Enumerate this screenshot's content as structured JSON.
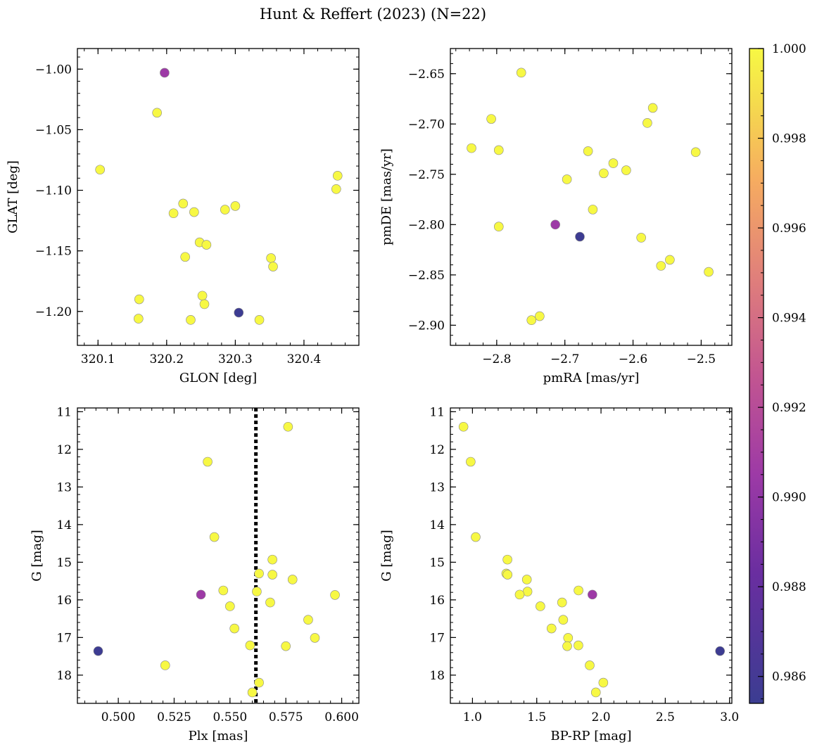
{
  "title": "Hunt & Reffert (2023) (N=22)",
  "colorbar": {
    "range": [
      0.9854,
      1.0
    ],
    "ticks": [
      0.986,
      0.988,
      0.99,
      0.992,
      0.994,
      0.996,
      0.998,
      1.0
    ],
    "tick_labels": [
      "0.986",
      "0.988",
      "0.990",
      "0.992",
      "0.994",
      "0.996",
      "0.998",
      "1.000"
    ],
    "colormap": "plasma"
  },
  "chart_data": [
    {
      "type": "scatter",
      "xlabel": "GLON [deg]",
      "ylabel": "GLAT [deg]",
      "xlim": [
        320.07,
        320.48
      ],
      "ylim": [
        -1.228,
        -0.983
      ],
      "xticks": [
        320.1,
        320.2,
        320.3,
        320.4
      ],
      "xtick_labels": [
        "320.1",
        "320.2",
        "320.3",
        "320.4"
      ],
      "yticks": [
        -1.0,
        -1.05,
        -1.1,
        -1.15,
        -1.2
      ],
      "ytick_labels": [
        "−1.00",
        "−1.05",
        "−1.10",
        "−1.15",
        "−1.20"
      ],
      "points": [
        {
          "x": 320.197,
          "y": -1.003,
          "c": 0.9905
        },
        {
          "x": 320.186,
          "y": -1.036,
          "c": 1.0
        },
        {
          "x": 320.103,
          "y": -1.083,
          "c": 1.0
        },
        {
          "x": 320.449,
          "y": -1.088,
          "c": 1.0
        },
        {
          "x": 320.447,
          "y": -1.099,
          "c": 1.0
        },
        {
          "x": 320.224,
          "y": -1.111,
          "c": 1.0
        },
        {
          "x": 320.3,
          "y": -1.113,
          "c": 1.0
        },
        {
          "x": 320.285,
          "y": -1.116,
          "c": 1.0
        },
        {
          "x": 320.21,
          "y": -1.119,
          "c": 1.0
        },
        {
          "x": 320.24,
          "y": -1.118,
          "c": 1.0
        },
        {
          "x": 320.248,
          "y": -1.143,
          "c": 1.0
        },
        {
          "x": 320.258,
          "y": -1.145,
          "c": 1.0
        },
        {
          "x": 320.227,
          "y": -1.155,
          "c": 1.0
        },
        {
          "x": 320.352,
          "y": -1.156,
          "c": 1.0
        },
        {
          "x": 320.355,
          "y": -1.163,
          "c": 1.0
        },
        {
          "x": 320.252,
          "y": -1.187,
          "c": 1.0
        },
        {
          "x": 320.16,
          "y": -1.19,
          "c": 1.0
        },
        {
          "x": 320.255,
          "y": -1.194,
          "c": 1.0
        },
        {
          "x": 320.305,
          "y": -1.201,
          "c": 0.9855
        },
        {
          "x": 320.159,
          "y": -1.206,
          "c": 1.0
        },
        {
          "x": 320.235,
          "y": -1.207,
          "c": 1.0
        },
        {
          "x": 320.335,
          "y": -1.207,
          "c": 1.0
        }
      ]
    },
    {
      "type": "scatter",
      "xlabel": "pmRA [mas/yr]",
      "ylabel": "pmDE [mas/yr]",
      "xlim": [
        -2.868,
        -2.455
      ],
      "ylim": [
        -2.92,
        -2.625
      ],
      "xticks": [
        -2.8,
        -2.7,
        -2.6,
        -2.5
      ],
      "xtick_labels": [
        "−2.8",
        "−2.7",
        "−2.6",
        "−2.5"
      ],
      "yticks": [
        -2.65,
        -2.7,
        -2.75,
        -2.8,
        -2.85,
        -2.9
      ],
      "ytick_labels": [
        "−2.65",
        "−2.70",
        "−2.75",
        "−2.80",
        "−2.85",
        "−2.90"
      ],
      "points": [
        {
          "x": -2.764,
          "y": -2.649,
          "c": 1.0
        },
        {
          "x": -2.571,
          "y": -2.684,
          "c": 1.0
        },
        {
          "x": -2.808,
          "y": -2.695,
          "c": 1.0
        },
        {
          "x": -2.579,
          "y": -2.699,
          "c": 1.0
        },
        {
          "x": -2.837,
          "y": -2.724,
          "c": 1.0
        },
        {
          "x": -2.797,
          "y": -2.726,
          "c": 1.0
        },
        {
          "x": -2.666,
          "y": -2.727,
          "c": 1.0
        },
        {
          "x": -2.508,
          "y": -2.728,
          "c": 1.0
        },
        {
          "x": -2.629,
          "y": -2.739,
          "c": 1.0
        },
        {
          "x": -2.61,
          "y": -2.746,
          "c": 1.0
        },
        {
          "x": -2.643,
          "y": -2.749,
          "c": 1.0
        },
        {
          "x": -2.697,
          "y": -2.755,
          "c": 1.0
        },
        {
          "x": -2.659,
          "y": -2.785,
          "c": 1.0
        },
        {
          "x": -2.714,
          "y": -2.8,
          "c": 0.9905
        },
        {
          "x": -2.797,
          "y": -2.802,
          "c": 1.0
        },
        {
          "x": -2.678,
          "y": -2.812,
          "c": 0.9855
        },
        {
          "x": -2.588,
          "y": -2.813,
          "c": 1.0
        },
        {
          "x": -2.546,
          "y": -2.835,
          "c": 1.0
        },
        {
          "x": -2.559,
          "y": -2.841,
          "c": 1.0
        },
        {
          "x": -2.489,
          "y": -2.847,
          "c": 1.0
        },
        {
          "x": -2.737,
          "y": -2.891,
          "c": 1.0
        },
        {
          "x": -2.749,
          "y": -2.895,
          "c": 1.0
        }
      ]
    },
    {
      "type": "scatter",
      "xlabel": "Plx [mas]",
      "ylabel": "G [mag]",
      "xlim": [
        0.4817,
        0.6077
      ],
      "ylim": [
        18.75,
        10.9
      ],
      "yinverted": true,
      "xticks": [
        0.5,
        0.525,
        0.55,
        0.575,
        0.6
      ],
      "xtick_labels": [
        "0.500",
        "0.525",
        "0.550",
        "0.575",
        "0.600"
      ],
      "yticks": [
        11,
        12,
        13,
        14,
        15,
        16,
        17,
        18
      ],
      "ytick_labels": [
        "11",
        "12",
        "13",
        "14",
        "15",
        "16",
        "17",
        "18"
      ],
      "reference_line": {
        "axis": "x",
        "value": 0.5616,
        "style": "dotted"
      },
      "points": [
        {
          "x": 0.576,
          "y": 11.4,
          "c": 1.0
        },
        {
          "x": 0.54,
          "y": 12.33,
          "c": 1.0
        },
        {
          "x": 0.543,
          "y": 14.33,
          "c": 1.0
        },
        {
          "x": 0.569,
          "y": 14.93,
          "c": 1.0
        },
        {
          "x": 0.563,
          "y": 15.3,
          "c": 1.0
        },
        {
          "x": 0.569,
          "y": 15.33,
          "c": 1.0
        },
        {
          "x": 0.578,
          "y": 15.46,
          "c": 1.0
        },
        {
          "x": 0.547,
          "y": 15.75,
          "c": 1.0
        },
        {
          "x": 0.562,
          "y": 15.78,
          "c": 1.0
        },
        {
          "x": 0.537,
          "y": 15.86,
          "c": 0.9905
        },
        {
          "x": 0.597,
          "y": 15.87,
          "c": 1.0
        },
        {
          "x": 0.568,
          "y": 16.07,
          "c": 1.0
        },
        {
          "x": 0.55,
          "y": 16.17,
          "c": 1.0
        },
        {
          "x": 0.585,
          "y": 16.53,
          "c": 1.0
        },
        {
          "x": 0.552,
          "y": 16.76,
          "c": 1.0
        },
        {
          "x": 0.588,
          "y": 17.01,
          "c": 1.0
        },
        {
          "x": 0.559,
          "y": 17.21,
          "c": 1.0
        },
        {
          "x": 0.575,
          "y": 17.23,
          "c": 1.0
        },
        {
          "x": 0.491,
          "y": 17.36,
          "c": 0.9855
        },
        {
          "x": 0.521,
          "y": 17.74,
          "c": 1.0
        },
        {
          "x": 0.563,
          "y": 18.2,
          "c": 1.0
        },
        {
          "x": 0.56,
          "y": 18.46,
          "c": 1.0
        }
      ]
    },
    {
      "type": "scatter",
      "xlabel": "BP-RP [mag]",
      "ylabel": "G [mag]",
      "xlim": [
        0.828,
        3.018
      ],
      "ylim": [
        18.75,
        10.9
      ],
      "yinverted": true,
      "xticks": [
        1.0,
        1.5,
        2.0,
        2.5,
        3.0
      ],
      "xtick_labels": [
        "1.0",
        "1.5",
        "2.0",
        "2.5",
        "3.0"
      ],
      "yticks": [
        11,
        12,
        13,
        14,
        15,
        16,
        17,
        18
      ],
      "ytick_labels": [
        "11",
        "12",
        "13",
        "14",
        "15",
        "16",
        "17",
        "18"
      ],
      "points": [
        {
          "x": 0.93,
          "y": 11.4,
          "c": 1.0
        },
        {
          "x": 0.986,
          "y": 12.33,
          "c": 1.0
        },
        {
          "x": 1.025,
          "y": 14.33,
          "c": 1.0
        },
        {
          "x": 1.272,
          "y": 14.93,
          "c": 1.0
        },
        {
          "x": 1.263,
          "y": 15.3,
          "c": 1.0
        },
        {
          "x": 1.273,
          "y": 15.33,
          "c": 1.0
        },
        {
          "x": 1.423,
          "y": 15.46,
          "c": 1.0
        },
        {
          "x": 1.428,
          "y": 15.78,
          "c": 1.0
        },
        {
          "x": 1.825,
          "y": 15.75,
          "c": 1.0
        },
        {
          "x": 1.367,
          "y": 15.86,
          "c": 1.0
        },
        {
          "x": 1.933,
          "y": 15.86,
          "c": 0.9905
        },
        {
          "x": 1.697,
          "y": 16.07,
          "c": 1.0
        },
        {
          "x": 1.528,
          "y": 16.17,
          "c": 1.0
        },
        {
          "x": 1.706,
          "y": 16.53,
          "c": 1.0
        },
        {
          "x": 1.615,
          "y": 16.76,
          "c": 1.0
        },
        {
          "x": 1.744,
          "y": 17.01,
          "c": 1.0
        },
        {
          "x": 1.737,
          "y": 17.23,
          "c": 1.0
        },
        {
          "x": 1.824,
          "y": 17.21,
          "c": 1.0
        },
        {
          "x": 2.926,
          "y": 17.36,
          "c": 0.9855
        },
        {
          "x": 1.912,
          "y": 17.74,
          "c": 1.0
        },
        {
          "x": 2.018,
          "y": 18.2,
          "c": 1.0
        },
        {
          "x": 1.96,
          "y": 18.46,
          "c": 1.0
        }
      ]
    }
  ]
}
